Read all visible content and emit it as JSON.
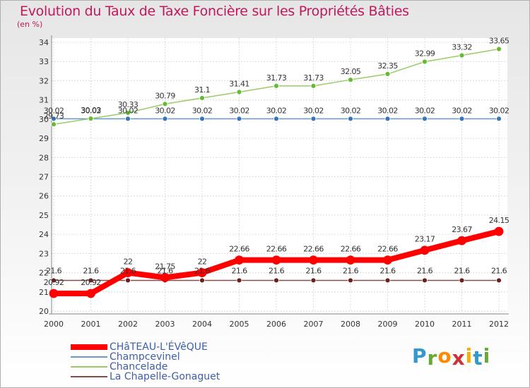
{
  "chart_data": {
    "type": "line",
    "title": "Evolution du Taux de Taxe Foncière sur les Propriétés Bâties",
    "subtitle": "(en %)",
    "x": [
      "2000",
      "2001",
      "2002",
      "2003",
      "2004",
      "2005",
      "2006",
      "2007",
      "2008",
      "2009",
      "2010",
      "2011",
      "2012"
    ],
    "ylim": [
      20,
      34
    ],
    "yticks": [
      "20",
      "21",
      "22",
      "23",
      "24",
      "25",
      "26",
      "27",
      "28",
      "29",
      "30",
      "31",
      "32",
      "33",
      "34"
    ],
    "grid": true,
    "legend_position": "bottom-left",
    "series": [
      {
        "name": "CHâTEAU-L'ÉVêQUE",
        "color": "#ff0000",
        "values": [
          20.92,
          20.92,
          22,
          21.75,
          22,
          22.66,
          22.66,
          22.66,
          22.66,
          22.66,
          23.17,
          23.67,
          24.15
        ],
        "labels": [
          "20.92",
          "20.92",
          "22",
          "21.75",
          "22",
          "22.66",
          "22.66",
          "22.66",
          "22.66",
          "22.66",
          "23.17",
          "23.67",
          "24.15"
        ]
      },
      {
        "name": "Champcevinel",
        "color": "#6699cc",
        "values": [
          30.02,
          30.02,
          30.02,
          30.02,
          30.02,
          30.02,
          30.02,
          30.02,
          30.02,
          30.02,
          30.02,
          30.02,
          30.02
        ],
        "labels": [
          "30.02",
          "30.02",
          "30.02",
          "30.02",
          "30.02",
          "30.02",
          "30.02",
          "30.02",
          "30.02",
          "30.02",
          "30.02",
          "30.02",
          "30.02"
        ]
      },
      {
        "name": "Chancelade",
        "color": "#99cc66",
        "values": [
          29.73,
          30.03,
          30.33,
          30.79,
          31.1,
          31.41,
          31.73,
          31.73,
          32.05,
          32.35,
          32.99,
          33.32,
          33.65
        ],
        "labels": [
          "29.73",
          "30.03",
          "30.33",
          "30.79",
          "31.1",
          "31.41",
          "31.73",
          "31.73",
          "32.05",
          "32.35",
          "32.99",
          "33.32",
          "33.65"
        ]
      },
      {
        "name": "La Chapelle-Gonaguet",
        "color": "#8b4a4a",
        "values": [
          21.6,
          21.6,
          21.6,
          21.6,
          21.6,
          21.6,
          21.6,
          21.6,
          21.6,
          21.6,
          21.6,
          21.6,
          21.6
        ],
        "labels": [
          "21.6",
          "21.6",
          "21.6",
          "21.6",
          "21.6",
          "21.6",
          "21.6",
          "21.6",
          "21.6",
          "21.6",
          "21.6",
          "21.6",
          "21.6"
        ]
      }
    ]
  },
  "logo": {
    "letters": [
      "P",
      "r",
      "o",
      "x",
      "i",
      "t",
      "i"
    ],
    "colors": [
      "#3399cc",
      "#66aa33",
      "#ff8800",
      "#cc3333",
      "#ffaa00",
      "#3399cc",
      "#66aa33"
    ]
  }
}
